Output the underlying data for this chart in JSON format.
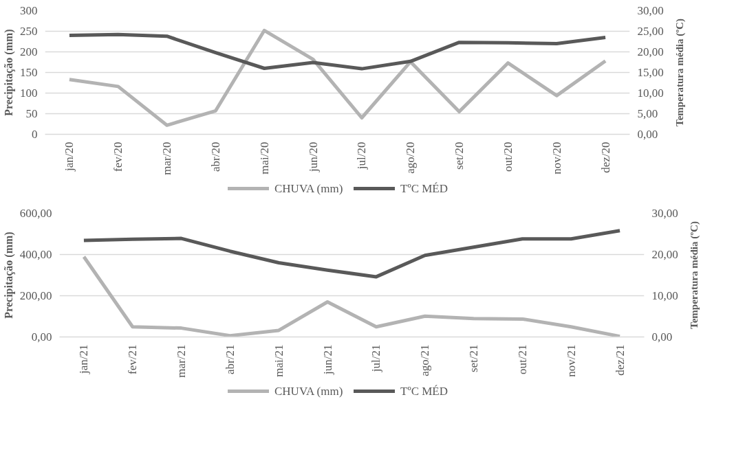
{
  "chart_data": [
    {
      "type": "line",
      "categories": [
        "jan/20",
        "fev/20",
        "mar/20",
        "abr/20",
        "mai/20",
        "jun/20",
        "jul/20",
        "ago/20",
        "set/20",
        "out/20",
        "nov/20",
        "dez/20"
      ],
      "ylabel": "Precipitação (mm)",
      "y2label": "Temperatura média (ºC)",
      "ylim": [
        0,
        300
      ],
      "yticks": [
        0,
        50,
        100,
        150,
        200,
        250,
        300
      ],
      "y2lim": [
        0,
        30
      ],
      "y2ticks": [
        {
          "value": 0,
          "label": "0,00"
        },
        {
          "value": 5,
          "label": "5,00"
        },
        {
          "value": 10,
          "label": "10,00"
        },
        {
          "value": 15,
          "label": "15,00"
        },
        {
          "value": 20,
          "label": "20,00"
        },
        {
          "value": 25,
          "label": "25,00"
        },
        {
          "value": 30,
          "label": "30,00"
        }
      ],
      "grid": "y",
      "legend": "bottom",
      "marker": "none",
      "line_style": "solid",
      "series": [
        {
          "name": "CHUVA (mm)",
          "color": "#b3b3b3",
          "values": [
            133,
            116,
            22,
            57,
            252,
            182,
            40,
            176,
            55,
            173,
            94,
            178
          ]
        },
        {
          "name": "TºC MÉD",
          "color": "#595959",
          "axis": "y2",
          "values": [
            24.0,
            24.2,
            23.8,
            19.8,
            16.0,
            17.4,
            15.9,
            17.7,
            22.3,
            22.2,
            22.0,
            23.5
          ]
        }
      ]
    },
    {
      "type": "line",
      "categories": [
        "jan/21",
        "fev/21",
        "mar/21",
        "abr/21",
        "mai/21",
        "jun/21",
        "jul/21",
        "ago/21",
        "set/21",
        "out/21",
        "nov/21",
        "dez/21"
      ],
      "ylabel": "Precipitação (mm)",
      "y2label": "Temperatura média (ºC)",
      "ylim": [
        0,
        600
      ],
      "yticks": [
        {
          "value": 0,
          "label": "0,00"
        },
        {
          "value": 200,
          "label": "200,00"
        },
        {
          "value": 400,
          "label": "400,00"
        },
        {
          "value": 600,
          "label": "600,00"
        }
      ],
      "y2lim": [
        0,
        30
      ],
      "y2ticks": [
        {
          "value": 0,
          "label": "0,00"
        },
        {
          "value": 10,
          "label": "10,00"
        },
        {
          "value": 20,
          "label": "20,00"
        },
        {
          "value": 30,
          "label": "30,00"
        }
      ],
      "grid": "y",
      "legend": "bottom",
      "marker": "none",
      "line_style": "solid",
      "series": [
        {
          "name": "CHUVA (mm)",
          "color": "#b3b3b3",
          "values": [
            389,
            49,
            43,
            6,
            32,
            170,
            49,
            101,
            89,
            87,
            49,
            3
          ]
        },
        {
          "name": "TºC MÉD",
          "color": "#595959",
          "axis": "y2",
          "values": [
            23.4,
            23.7,
            23.9,
            20.8,
            18.0,
            16.2,
            14.6,
            19.8,
            21.8,
            23.8,
            23.8,
            25.8
          ]
        }
      ]
    }
  ]
}
